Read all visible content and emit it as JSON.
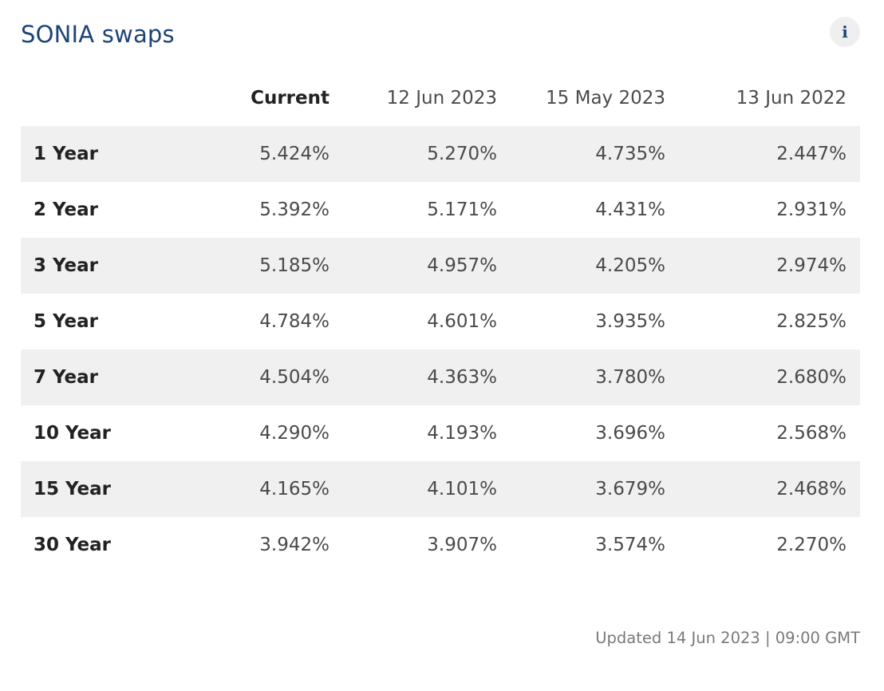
{
  "widget": {
    "title": "SONIA swaps",
    "info_label": "i"
  },
  "table": {
    "headers": [
      "Current",
      "12 Jun 2023",
      "15 May 2023",
      "13 Jun 2022"
    ],
    "rows": [
      {
        "tenor": "1 Year",
        "values": [
          "5.424%",
          "5.270%",
          "4.735%",
          "2.447%"
        ]
      },
      {
        "tenor": "2 Year",
        "values": [
          "5.392%",
          "5.171%",
          "4.431%",
          "2.931%"
        ]
      },
      {
        "tenor": "3 Year",
        "values": [
          "5.185%",
          "4.957%",
          "4.205%",
          "2.974%"
        ]
      },
      {
        "tenor": "5 Year",
        "values": [
          "4.784%",
          "4.601%",
          "3.935%",
          "2.825%"
        ]
      },
      {
        "tenor": "7 Year",
        "values": [
          "4.504%",
          "4.363%",
          "3.780%",
          "2.680%"
        ]
      },
      {
        "tenor": "10 Year",
        "values": [
          "4.290%",
          "4.193%",
          "3.696%",
          "2.568%"
        ]
      },
      {
        "tenor": "15 Year",
        "values": [
          "4.165%",
          "4.101%",
          "3.679%",
          "2.468%"
        ]
      },
      {
        "tenor": "30 Year",
        "values": [
          "3.942%",
          "3.907%",
          "3.574%",
          "2.270%"
        ]
      }
    ]
  },
  "footer": {
    "updated_text": "Updated 14 Jun 2023 | 09:00 GMT"
  },
  "colors": {
    "title": "#1d4477",
    "row_shade": "#f0f0f0",
    "text": "#4a4a4a",
    "muted": "#7a7a7a"
  }
}
